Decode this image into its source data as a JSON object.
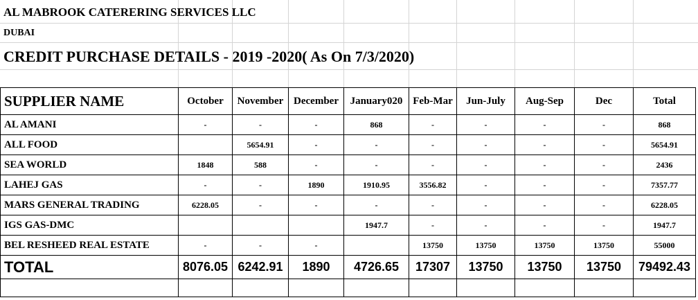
{
  "company": {
    "name": "AL MABROOK CATERERING SERVICES  LLC",
    "city": "DUBAI",
    "report_title": "CREDIT PURCHASE DETAILS - 2019 -2020( As On 7/3/2020)"
  },
  "table": {
    "headers": [
      "SUPPLIER NAME",
      "October",
      "November",
      "December",
      "January020",
      "Feb-Mar",
      "Jun-July",
      "Aug-Sep",
      "Dec",
      "Total"
    ],
    "rows": [
      [
        "AL AMANI",
        "-",
        "-",
        "-",
        "868",
        "-",
        "-",
        "-",
        "-",
        "868"
      ],
      [
        "ALL FOOD",
        "",
        "5654.91",
        "-",
        "-",
        "-",
        "-",
        "-",
        "-",
        "5654.91"
      ],
      [
        "SEA WORLD",
        "1848",
        "588",
        "-",
        "-",
        "-",
        "-",
        "-",
        "-",
        "2436"
      ],
      [
        "LAHEJ GAS",
        "-",
        "-",
        "1890",
        "1910.95",
        "3556.82",
        "-",
        "-",
        "-",
        "7357.77"
      ],
      [
        "MARS GENERAL TRADING",
        "6228.05",
        "-",
        "-",
        "-",
        "-",
        "-",
        "-",
        "-",
        "6228.05"
      ],
      [
        "IGS GAS-DMC",
        "",
        "",
        "",
        "1947.7",
        "-",
        "-",
        "-",
        "-",
        "1947.7"
      ],
      [
        "BEL RESHEED REAL ESTATE",
        "-",
        "-",
        "-",
        "",
        "13750",
        "13750",
        "13750",
        "13750",
        "55000"
      ]
    ],
    "total_row": [
      "TOTAL",
      "8076.05",
      "6242.91",
      "1890",
      "4726.65",
      "17307",
      "13750",
      "13750",
      "13750",
      "79492.43"
    ]
  }
}
